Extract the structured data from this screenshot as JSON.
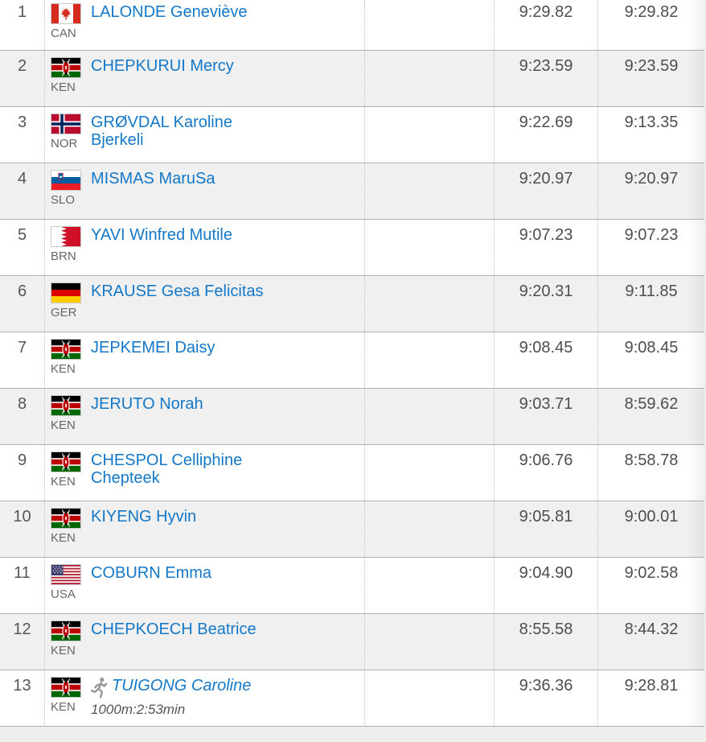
{
  "table": {
    "rows": [
      {
        "rank": "1",
        "country_code": "CAN",
        "flag": "can",
        "name_lines": [
          "LALONDE Geneviève"
        ],
        "time1": "9:29.82",
        "time2": "9:29.82"
      },
      {
        "rank": "2",
        "country_code": "KEN",
        "flag": "ken",
        "name_lines": [
          "CHEPKURUI Mercy"
        ],
        "time1": "9:23.59",
        "time2": "9:23.59"
      },
      {
        "rank": "3",
        "country_code": "NOR",
        "flag": "nor",
        "name_lines": [
          "GRØVDAL Karoline",
          "Bjerkeli"
        ],
        "time1": "9:22.69",
        "time2": "9:13.35"
      },
      {
        "rank": "4",
        "country_code": "SLO",
        "flag": "slo",
        "name_lines": [
          "MISMAS MaruSa"
        ],
        "time1": "9:20.97",
        "time2": "9:20.97"
      },
      {
        "rank": "5",
        "country_code": "BRN",
        "flag": "brn",
        "name_lines": [
          "YAVI Winfred Mutile"
        ],
        "time1": "9:07.23",
        "time2": "9:07.23"
      },
      {
        "rank": "6",
        "country_code": "GER",
        "flag": "ger",
        "name_lines": [
          "KRAUSE Gesa Felicitas"
        ],
        "time1": "9:20.31",
        "time2": "9:11.85"
      },
      {
        "rank": "7",
        "country_code": "KEN",
        "flag": "ken",
        "name_lines": [
          "JEPKEMEI Daisy"
        ],
        "time1": "9:08.45",
        "time2": "9:08.45"
      },
      {
        "rank": "8",
        "country_code": "KEN",
        "flag": "ken",
        "name_lines": [
          "JERUTO Norah"
        ],
        "time1": "9:03.71",
        "time2": "8:59.62"
      },
      {
        "rank": "9",
        "country_code": "KEN",
        "flag": "ken",
        "name_lines": [
          "CHESPOL Celliphine",
          "Chepteek"
        ],
        "time1": "9:06.76",
        "time2": "8:58.78"
      },
      {
        "rank": "10",
        "country_code": "KEN",
        "flag": "ken",
        "name_lines": [
          "KIYENG Hyvin"
        ],
        "time1": "9:05.81",
        "time2": "9:00.01"
      },
      {
        "rank": "11",
        "country_code": "USA",
        "flag": "usa",
        "name_lines": [
          "COBURN Emma"
        ],
        "time1": "9:04.90",
        "time2": "9:02.58"
      },
      {
        "rank": "12",
        "country_code": "KEN",
        "flag": "ken",
        "name_lines": [
          "CHEPKOECH Beatrice"
        ],
        "time1": "8:55.58",
        "time2": "8:44.32"
      },
      {
        "rank": "13",
        "country_code": "KEN",
        "flag": "ken",
        "name_lines": [
          "TUIGONG Caroline"
        ],
        "italic": true,
        "has_runner_icon": true,
        "note": "1000m:2:53min",
        "time1": "9:36.36",
        "time2": "9:28.81"
      }
    ]
  },
  "icons": {
    "runner": "running-person-icon"
  },
  "colors": {
    "link_blue": "#1478c8",
    "row_alt_bg": "#f0f0f0",
    "row_border": "#b2b2b2",
    "time_text": "#4e4e4e",
    "muted_text": "#666666"
  }
}
